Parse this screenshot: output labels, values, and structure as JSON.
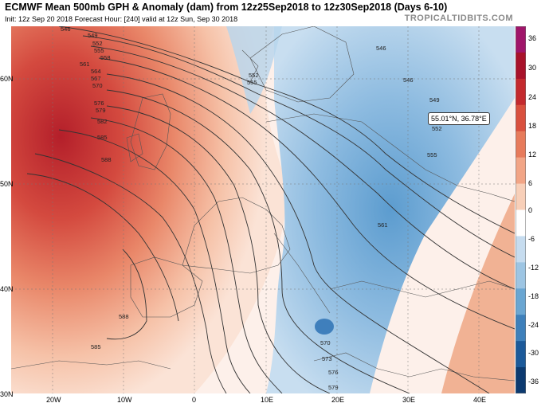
{
  "header": {
    "title": "ECMWF Mean 500mb GPH & Anomaly (dam) from 12z25Sep2018 to 12z30Sep2018 (Days 6-10)",
    "subtitle": "Init: 12z Sep 20 2018   Forecast Hour: [240]   valid at 12z Sun, Sep 30 2018",
    "brand": "TROPICALTIDBITS.COM"
  },
  "colorbar": {
    "labels": [
      "36",
      "30",
      "24",
      "18",
      "12",
      "6",
      "0",
      "-6",
      "-12",
      "-18",
      "-24",
      "-30",
      "-36"
    ],
    "colors": [
      "#a0156a",
      "#a8122a",
      "#c42a2e",
      "#d9503e",
      "#e77b5b",
      "#f2a586",
      "#f8cfb8",
      "#ffffff",
      "#c6dcef",
      "#9dc5e3",
      "#6aa6d2",
      "#3e80bb",
      "#1c5a9a",
      "#0c3a70"
    ]
  },
  "lat_labels": [
    "60N",
    "50N",
    "40N",
    "30N"
  ],
  "lon_labels": [
    "20W",
    "10W",
    "0",
    "10E",
    "20E",
    "30E",
    "40E"
  ],
  "contour_labels": [
    "546",
    "549",
    "552",
    "555",
    "558",
    "561",
    "564",
    "567",
    "570",
    "573",
    "576",
    "579",
    "582",
    "585",
    "588",
    "549",
    "552",
    "555",
    "561",
    "546",
    "552",
    "555",
    "570",
    "573",
    "576",
    "579",
    "585",
    "588",
    "546"
  ],
  "tooltip": "55.01°N, 36.78°E"
}
